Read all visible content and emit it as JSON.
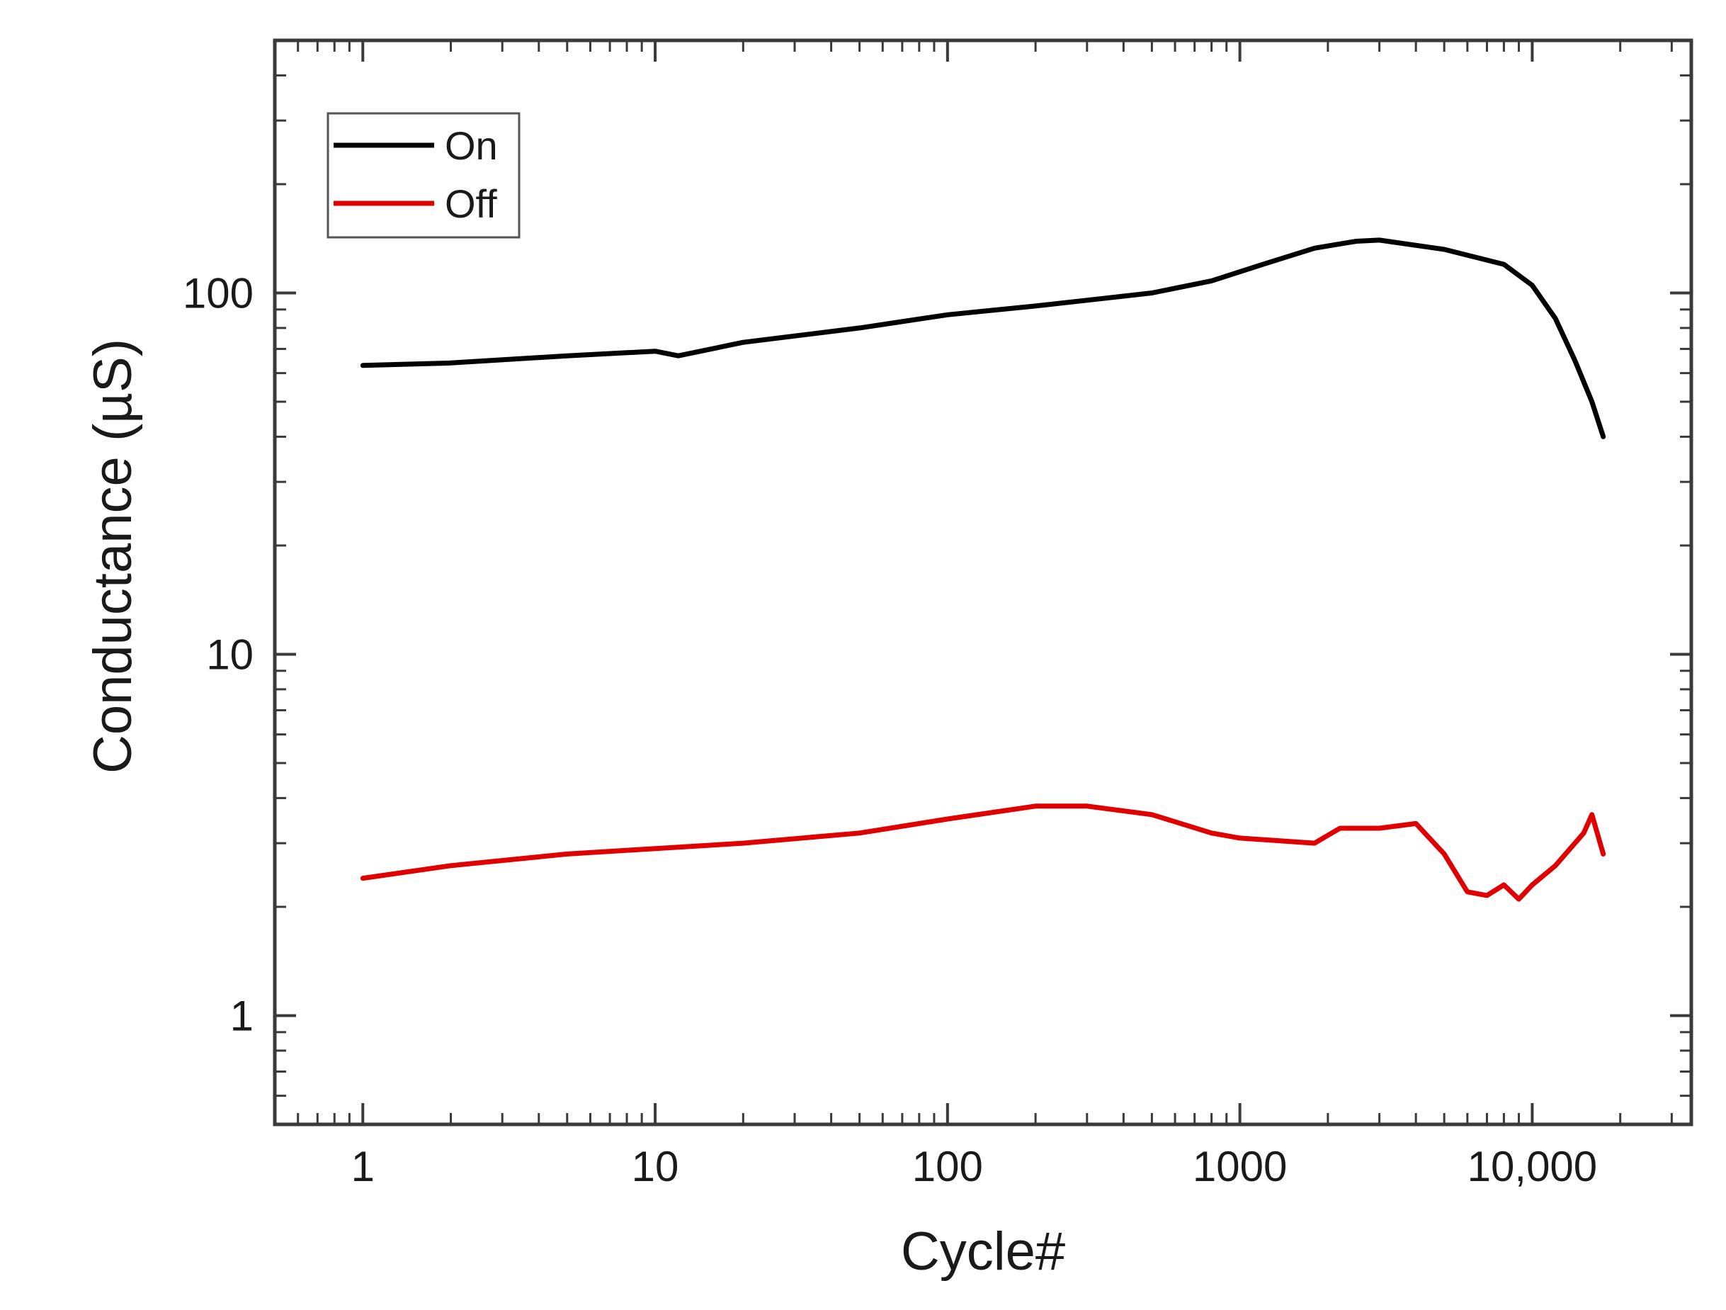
{
  "chart_data": {
    "type": "line",
    "title": "",
    "xlabel": "Cycle#",
    "ylabel": "Conductance (µS)",
    "xscale": "log",
    "yscale": "log",
    "xlim": [
      0.5,
      35000
    ],
    "ylim": [
      0.5,
      500
    ],
    "x_ticks": [
      {
        "value": 1,
        "label": "1"
      },
      {
        "value": 10,
        "label": "10"
      },
      {
        "value": 100,
        "label": "100"
      },
      {
        "value": 1000,
        "label": "1000"
      },
      {
        "value": 10000,
        "label": "10,000"
      }
    ],
    "y_ticks": [
      {
        "value": 1,
        "label": "1"
      },
      {
        "value": 10,
        "label": "10"
      },
      {
        "value": 100,
        "label": "100"
      }
    ],
    "legend": {
      "position": "top-left",
      "frame": true
    },
    "series": [
      {
        "name": "On",
        "color": "#000000",
        "x": [
          1,
          2,
          5,
          10,
          12,
          20,
          50,
          100,
          200,
          500,
          800,
          1200,
          1800,
          2500,
          3000,
          5000,
          8000,
          10000,
          12000,
          14000,
          16000,
          17500
        ],
        "y": [
          63,
          64,
          67,
          69,
          67,
          73,
          80,
          87,
          92,
          100,
          108,
          120,
          133,
          139,
          140,
          132,
          120,
          105,
          85,
          65,
          50,
          40
        ]
      },
      {
        "name": "Off",
        "color": "#e00000",
        "x": [
          1,
          2,
          5,
          10,
          20,
          50,
          100,
          200,
          300,
          500,
          800,
          1000,
          1800,
          2200,
          3000,
          4000,
          5000,
          6000,
          7000,
          8000,
          9000,
          10000,
          12000,
          14000,
          15000,
          16000,
          17500
        ],
        "y": [
          2.4,
          2.6,
          2.8,
          2.9,
          3.0,
          3.2,
          3.5,
          3.8,
          3.8,
          3.6,
          3.2,
          3.1,
          3.0,
          3.3,
          3.3,
          3.4,
          2.8,
          2.2,
          2.15,
          2.3,
          2.1,
          2.3,
          2.6,
          3.0,
          3.2,
          3.6,
          2.8
        ]
      }
    ]
  }
}
